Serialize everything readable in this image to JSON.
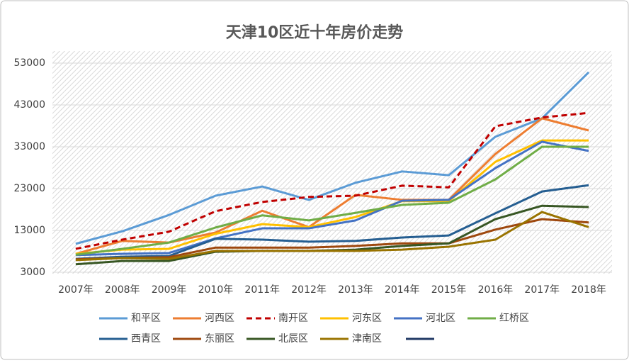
{
  "chart_data": {
    "type": "line",
    "title": "天津10区近十年房价走势",
    "categories": [
      "2007年",
      "2008年",
      "2009年",
      "2010年",
      "2011年",
      "2012年",
      "2013年",
      "2014年",
      "2015年",
      "2016年",
      "2017年",
      "2018年"
    ],
    "ylim": [
      3000,
      53000
    ],
    "yticks": [
      3000,
      13000,
      23000,
      33000,
      43000,
      53000
    ],
    "grid": true,
    "series": [
      {
        "name": "和平区",
        "color": "#5b9bd5",
        "values": [
          9800,
          12800,
          16700,
          21300,
          23500,
          20300,
          24400,
          27100,
          26200,
          35400,
          39800,
          50800
        ]
      },
      {
        "name": "河西区",
        "color": "#ed7d31",
        "values": [
          7400,
          10500,
          10100,
          12500,
          17700,
          13800,
          21500,
          20300,
          20300,
          31300,
          39800,
          36900
        ]
      },
      {
        "name": "南开区",
        "color": "#c00000",
        "dashed": true,
        "values": [
          8600,
          10800,
          12700,
          17600,
          19800,
          21000,
          21300,
          23700,
          23300,
          37900,
          40000,
          41100
        ]
      },
      {
        "name": "河东区",
        "color": "#ffc000",
        "values": [
          7400,
          8400,
          8600,
          12200,
          14500,
          13800,
          16200,
          20000,
          20000,
          29400,
          34500,
          34500
        ]
      },
      {
        "name": "河北区",
        "color": "#4472c4",
        "values": [
          7100,
          7400,
          7600,
          11100,
          13500,
          13500,
          15400,
          20100,
          20300,
          27900,
          34200,
          32000
        ]
      },
      {
        "name": "红桥区",
        "color": "#70ad47",
        "values": [
          7200,
          8600,
          10100,
          13700,
          16600,
          15400,
          17200,
          19100,
          19600,
          25200,
          33000,
          33000
        ]
      },
      {
        "name": "西青区",
        "color": "#255e91",
        "values": [
          6200,
          6700,
          6900,
          11000,
          10800,
          10300,
          10500,
          11300,
          11800,
          17100,
          22300,
          23800
        ]
      },
      {
        "name": "东丽区",
        "color": "#9e480e",
        "values": [
          6100,
          6400,
          6600,
          8900,
          8900,
          8900,
          9300,
          9900,
          9900,
          13200,
          15700,
          14900
        ]
      },
      {
        "name": "北辰区",
        "color": "#375623",
        "values": [
          4900,
          5700,
          5700,
          7900,
          8100,
          8100,
          8400,
          9300,
          9900,
          15700,
          18900,
          18600
        ]
      },
      {
        "name": "津南区",
        "color": "#997300",
        "values": [
          5900,
          6400,
          6200,
          8100,
          8100,
          8100,
          8100,
          8400,
          9100,
          10800,
          17400,
          13800
        ]
      }
    ]
  }
}
